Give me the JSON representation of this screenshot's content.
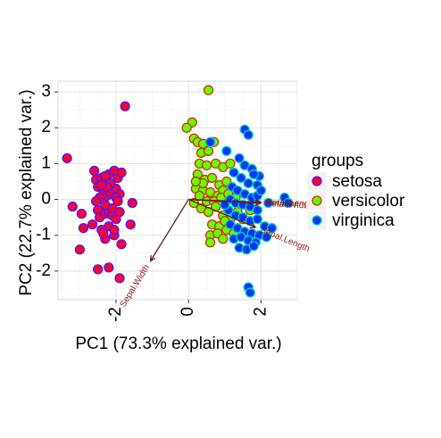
{
  "chart_data": {
    "type": "scatter",
    "title": "",
    "xlabel": "PC1 (73.3% explained var.)",
    "ylabel": "PC2 (22.7% explained var.)",
    "xlim": [
      -3.6,
      3.0
    ],
    "ylim": [
      -2.8,
      3.3
    ],
    "x_ticks": [
      -2,
      0,
      2
    ],
    "y_ticks": [
      -2,
      -1,
      0,
      1,
      2,
      3
    ],
    "x_tick_labels": [
      "-2",
      "0",
      "2"
    ],
    "y_tick_labels": [
      "-2",
      "-1",
      "0",
      "1",
      "2",
      "3"
    ],
    "grid": true,
    "legend": {
      "title": "groups",
      "position": "right",
      "entries": [
        {
          "name": "setosa",
          "fill": "#ff0033",
          "stroke": "#4b19ff"
        },
        {
          "name": "versicolor",
          "fill": "#66ff00",
          "stroke": "#cc3300"
        },
        {
          "name": "virginica",
          "fill": "#0033ff",
          "stroke": "#00d6b2"
        }
      ]
    },
    "loadings": [
      {
        "label": "Petal.Length",
        "x": 2.0,
        "y": -0.08
      },
      {
        "label": "Petal.Width",
        "x": 1.98,
        "y": -0.11
      },
      {
        "label": "Sepal.Length",
        "x": 1.85,
        "y": -0.78
      },
      {
        "label": "Sepal.Width",
        "x": -1.05,
        "y": -1.72
      }
    ],
    "series": [
      {
        "name": "setosa",
        "points": [
          [
            -3.35,
            1.15
          ],
          [
            -1.75,
            2.6
          ],
          [
            -3.2,
            -0.2
          ],
          [
            -2.95,
            -0.4
          ],
          [
            -3.0,
            -1.4
          ],
          [
            -2.5,
            -1.95
          ],
          [
            -1.9,
            -2.2
          ],
          [
            -2.2,
            -1.9
          ],
          [
            -1.55,
            -0.1
          ],
          [
            -1.6,
            -0.7
          ],
          [
            -2.65,
            -0.7
          ],
          [
            -2.9,
            -0.8
          ],
          [
            -2.3,
            -1.1
          ],
          [
            -2.05,
            -1.0
          ],
          [
            -1.85,
            -1.25
          ],
          [
            -2.5,
            -0.3
          ],
          [
            -2.45,
            -0.5
          ],
          [
            -2.3,
            -0.4
          ],
          [
            -2.2,
            -0.35
          ],
          [
            -2.1,
            -0.45
          ],
          [
            -2.6,
            0.8
          ],
          [
            -2.55,
            0.55
          ],
          [
            -2.4,
            0.6
          ],
          [
            -2.3,
            0.5
          ],
          [
            -2.2,
            0.7
          ],
          [
            -2.05,
            0.8
          ],
          [
            -1.95,
            0.6
          ],
          [
            -1.85,
            0.75
          ],
          [
            -2.35,
            0.25
          ],
          [
            -2.25,
            0.1
          ],
          [
            -2.15,
            0.2
          ],
          [
            -2.0,
            0.3
          ],
          [
            -1.9,
            0.15
          ],
          [
            -2.45,
            0.05
          ],
          [
            -2.55,
            -0.05
          ],
          [
            -2.3,
            -0.15
          ],
          [
            -2.1,
            -0.25
          ],
          [
            -2.0,
            -0.55
          ],
          [
            -1.9,
            -0.35
          ],
          [
            -2.2,
            -0.75
          ],
          [
            -2.4,
            -0.85
          ],
          [
            -2.35,
            -0.95
          ],
          [
            -2.05,
            -0.85
          ],
          [
            -2.5,
            0.35
          ],
          [
            -2.15,
            0.45
          ],
          [
            -2.25,
            0.35
          ],
          [
            -2.4,
            0.4
          ],
          [
            -2.0,
            0.05
          ],
          [
            -1.95,
            -0.05
          ],
          [
            -2.3,
            0.65
          ]
        ]
      },
      {
        "name": "versicolor",
        "points": [
          [
            0.55,
            3.05
          ],
          [
            0.1,
            2.15
          ],
          [
            0.15,
            1.7
          ],
          [
            -0.05,
            2.0
          ],
          [
            0.25,
            1.6
          ],
          [
            0.4,
            1.55
          ],
          [
            0.35,
            1.3
          ],
          [
            0.7,
            1.6
          ],
          [
            0.55,
            1.35
          ],
          [
            0.3,
            1.0
          ],
          [
            0.5,
            0.95
          ],
          [
            0.75,
            1.0
          ],
          [
            0.95,
            0.9
          ],
          [
            1.15,
            1.0
          ],
          [
            0.25,
            0.7
          ],
          [
            0.45,
            0.55
          ],
          [
            0.65,
            0.6
          ],
          [
            0.85,
            0.4
          ],
          [
            1.05,
            0.5
          ],
          [
            0.2,
            0.3
          ],
          [
            0.4,
            0.25
          ],
          [
            0.6,
            0.2
          ],
          [
            0.8,
            0.1
          ],
          [
            0.3,
            0.1
          ],
          [
            0.5,
            -0.05
          ],
          [
            0.7,
            -0.05
          ],
          [
            0.95,
            0.25
          ],
          [
            0.15,
            -0.1
          ],
          [
            0.35,
            -0.25
          ],
          [
            0.55,
            -0.35
          ],
          [
            0.75,
            -0.2
          ],
          [
            0.95,
            -0.45
          ],
          [
            1.15,
            -0.55
          ],
          [
            1.35,
            -0.35
          ],
          [
            0.65,
            -0.7
          ],
          [
            0.85,
            -0.75
          ],
          [
            1.05,
            -0.85
          ],
          [
            0.6,
            -1.0
          ],
          [
            0.8,
            -0.95
          ],
          [
            0.95,
            -1.1
          ],
          [
            1.25,
            -0.95
          ],
          [
            0.6,
            -1.2
          ],
          [
            1.5,
            -0.55
          ],
          [
            1.7,
            -0.3
          ],
          [
            1.0,
            -0.6
          ],
          [
            0.4,
            0.45
          ],
          [
            0.2,
            0.5
          ],
          [
            0.9,
            0.05
          ],
          [
            1.1,
            0.15
          ],
          [
            1.3,
            0.05
          ]
        ]
      },
      {
        "name": "virginica",
        "points": [
          [
            1.55,
            1.95
          ],
          [
            1.65,
            1.8
          ],
          [
            0.6,
            1.6
          ],
          [
            1.05,
            1.35
          ],
          [
            1.4,
            1.15
          ],
          [
            1.55,
            0.95
          ],
          [
            1.25,
            0.75
          ],
          [
            1.75,
            0.85
          ],
          [
            1.95,
            0.65
          ],
          [
            1.45,
            0.6
          ],
          [
            1.65,
            0.45
          ],
          [
            1.9,
            0.4
          ],
          [
            1.2,
            0.35
          ],
          [
            1.35,
            0.25
          ],
          [
            1.55,
            0.15
          ],
          [
            1.75,
            0.05
          ],
          [
            1.9,
            0.1
          ],
          [
            1.15,
            0.0
          ],
          [
            1.3,
            -0.1
          ],
          [
            1.5,
            -0.15
          ],
          [
            1.7,
            -0.2
          ],
          [
            1.9,
            -0.3
          ],
          [
            2.2,
            -0.1
          ],
          [
            2.65,
            0.05
          ],
          [
            2.75,
            -0.1
          ],
          [
            1.1,
            -0.3
          ],
          [
            1.3,
            -0.45
          ],
          [
            1.5,
            -0.5
          ],
          [
            1.7,
            -0.6
          ],
          [
            1.9,
            -0.55
          ],
          [
            2.1,
            -0.75
          ],
          [
            2.3,
            -0.8
          ],
          [
            1.15,
            -0.7
          ],
          [
            1.35,
            -0.8
          ],
          [
            1.55,
            -0.9
          ],
          [
            1.75,
            -0.95
          ],
          [
            1.95,
            -1.0
          ],
          [
            2.15,
            -1.05
          ],
          [
            1.25,
            -1.1
          ],
          [
            1.45,
            -1.05
          ],
          [
            1.65,
            -1.15
          ],
          [
            1.85,
            -1.2
          ],
          [
            1.4,
            -1.35
          ],
          [
            1.6,
            -1.4
          ],
          [
            1.8,
            -1.3
          ],
          [
            1.65,
            -2.45
          ],
          [
            1.7,
            -2.6
          ],
          [
            1.0,
            -0.15
          ],
          [
            1.8,
            0.7
          ],
          [
            2.0,
            0.25
          ]
        ]
      }
    ]
  }
}
